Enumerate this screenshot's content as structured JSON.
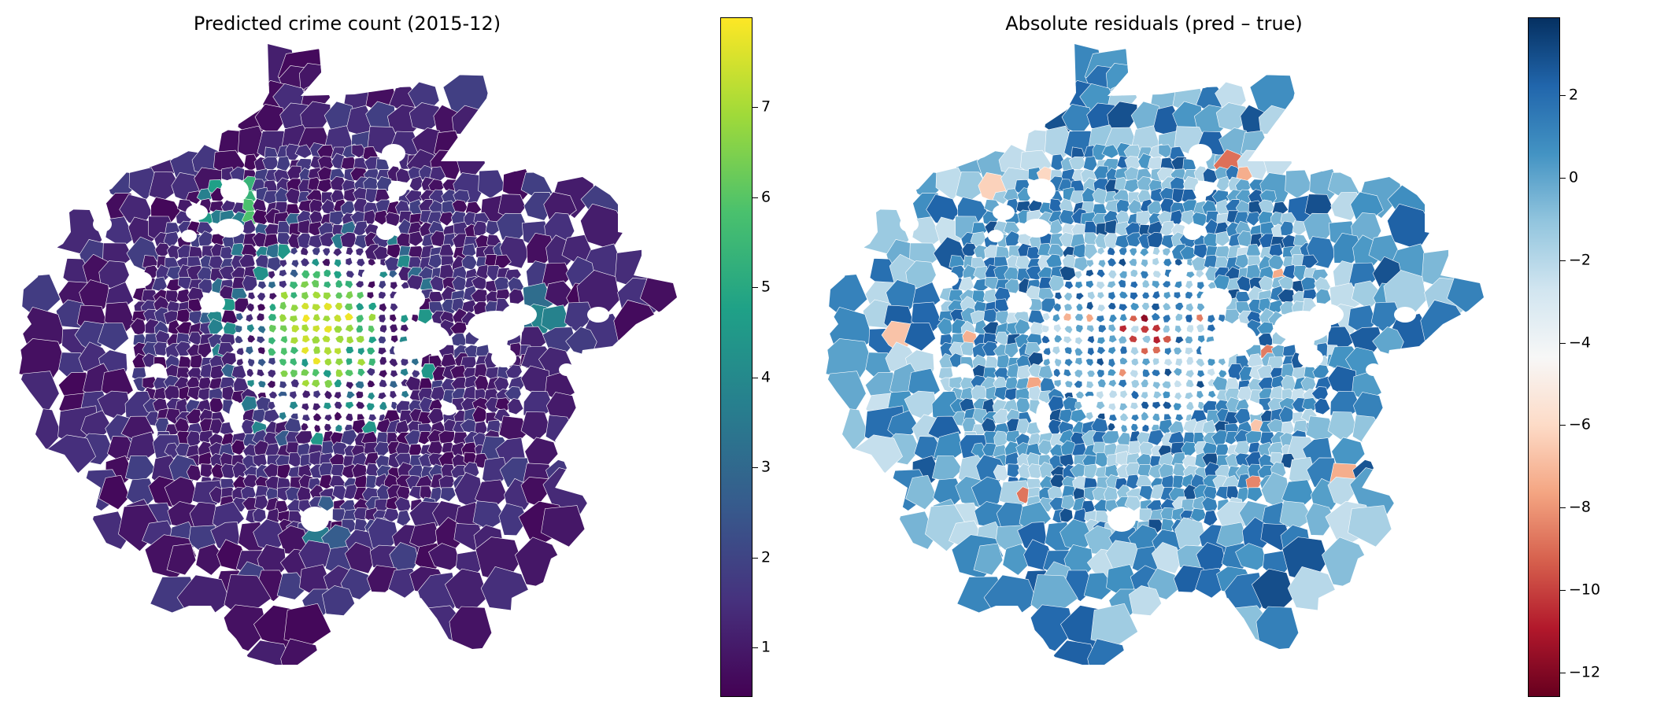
{
  "maps": [
    {
      "title": "Predicted crime count (2015-12)",
      "colormap": "viridis",
      "colorbar": {
        "ticks": [
          {
            "value": 1,
            "label": "1"
          },
          {
            "value": 2,
            "label": "2"
          },
          {
            "value": 3,
            "label": "3"
          },
          {
            "value": 4,
            "label": "4"
          },
          {
            "value": 5,
            "label": "5"
          },
          {
            "value": 6,
            "label": "6"
          },
          {
            "value": 7,
            "label": "7"
          }
        ],
        "range": [
          0.45,
          8.0
        ],
        "stops": [
          "#440154",
          "#46327e",
          "#365c8d",
          "#277f8e",
          "#1fa187",
          "#4ac16d",
          "#a0da39",
          "#fde725"
        ]
      }
    },
    {
      "title": "Absolute residuals (pred – true)",
      "colormap": "RdBu",
      "colorbar": {
        "ticks": [
          {
            "value": -12,
            "label": "−12"
          },
          {
            "value": -10,
            "label": "−10"
          },
          {
            "value": -8,
            "label": "−8"
          },
          {
            "value": -6,
            "label": "−6"
          },
          {
            "value": -4,
            "label": "−4"
          },
          {
            "value": -2,
            "label": "−2"
          },
          {
            "value": 0,
            "label": "0"
          },
          {
            "value": 2,
            "label": "2"
          }
        ],
        "range": [
          -12.6,
          3.9
        ],
        "stops": [
          "#67001f",
          "#b2182b",
          "#d6604d",
          "#f4a582",
          "#fddbc7",
          "#f7f7f7",
          "#d1e5f0",
          "#92c5de",
          "#4393c3",
          "#2166ac",
          "#053061"
        ]
      }
    }
  ]
}
